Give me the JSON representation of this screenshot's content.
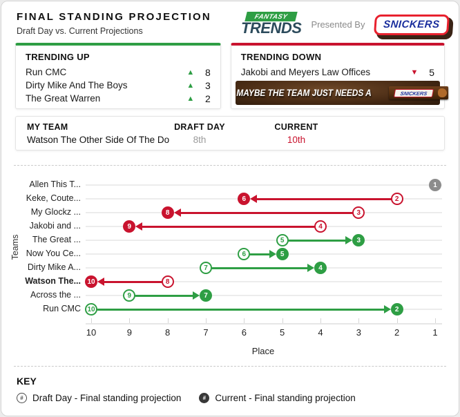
{
  "header": {
    "title": "FINAL STANDING PROJECTION",
    "subtitle": "Draft Day vs. Current Projections",
    "logo_top": "FANTASY",
    "logo_bottom": "TRENDS",
    "presented_by": "Presented By",
    "sponsor": "SNICKERS"
  },
  "trending_up": {
    "title": "TRENDING UP",
    "items": [
      {
        "team": "Run CMC",
        "change": "8"
      },
      {
        "team": "Dirty Mike And The Boys",
        "change": "3"
      },
      {
        "team": "The Great Warren",
        "change": "2"
      }
    ]
  },
  "trending_down": {
    "title": "TRENDING DOWN",
    "items": [
      {
        "team": "Jakobi and Meyers Law Offices",
        "change": "5"
      }
    ],
    "ad": {
      "text": "MAYBE THE TEAM JUST NEEDS A",
      "bar_label": "SNICKERS"
    }
  },
  "my_team": {
    "label": "MY TEAM",
    "draft_day_label": "DRAFT DAY",
    "current_label": "CURRENT",
    "team": "Watson The Other Side Of The Do",
    "draft_day": "8th",
    "current": "10th"
  },
  "chart_data": {
    "type": "dumbbell",
    "title": "Final standing projection by team",
    "xlabel": "Place",
    "ylabel": "Teams",
    "x_ticks": [
      10,
      9,
      8,
      7,
      6,
      5,
      4,
      3,
      2,
      1
    ],
    "xlim_reversed": [
      10,
      1
    ],
    "grid": true,
    "teams": [
      {
        "label": "Allen This T...",
        "draft_day": 1,
        "current": 1,
        "trend": "none",
        "highlight": false
      },
      {
        "label": "Keke, Coute...",
        "draft_day": 2,
        "current": 6,
        "trend": "down",
        "highlight": false
      },
      {
        "label": "My Glockz ...",
        "draft_day": 3,
        "current": 8,
        "trend": "down",
        "highlight": false
      },
      {
        "label": "Jakobi and ...",
        "draft_day": 4,
        "current": 9,
        "trend": "down",
        "highlight": false
      },
      {
        "label": "The Great ...",
        "draft_day": 5,
        "current": 3,
        "trend": "up",
        "highlight": false
      },
      {
        "label": "Now You Ce...",
        "draft_day": 6,
        "current": 5,
        "trend": "up",
        "highlight": false
      },
      {
        "label": "Dirty Mike A...",
        "draft_day": 7,
        "current": 4,
        "trend": "up",
        "highlight": false
      },
      {
        "label": "Watson The...",
        "draft_day": 8,
        "current": 10,
        "trend": "down",
        "highlight": true
      },
      {
        "label": "Across the ...",
        "draft_day": 9,
        "current": 7,
        "trend": "up",
        "highlight": false
      },
      {
        "label": "Run CMC",
        "draft_day": 10,
        "current": 2,
        "trend": "up",
        "highlight": false
      }
    ]
  },
  "key": {
    "title": "KEY",
    "items": [
      {
        "symbol": "#",
        "style": "outlined",
        "label": "Draft Day - Final standing projection"
      },
      {
        "symbol": "#",
        "style": "filled",
        "label": "Current - Final standing projection"
      }
    ]
  },
  "glyphs": {
    "up_triangle": "▲",
    "down_triangle": "▼"
  },
  "colors": {
    "green": "#2e9e44",
    "red": "#c9132e",
    "neutral_gray": "#8c8c8c"
  }
}
